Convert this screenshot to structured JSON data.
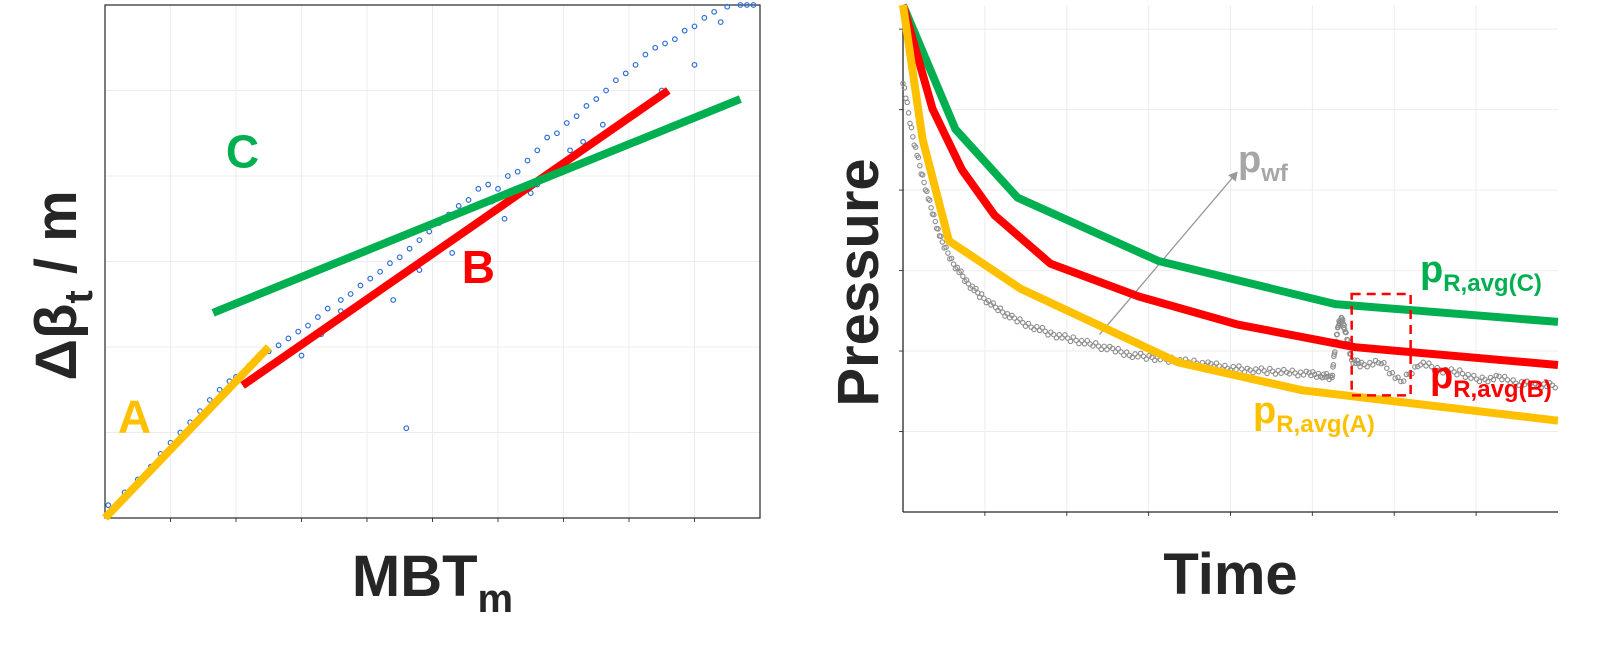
{
  "chart_data": [
    {
      "type": "scatter",
      "title": "",
      "xlabel": {
        "main": "MBT",
        "sub": "m"
      },
      "ylabel": {
        "pre": "Δβ",
        "sub": "t",
        "post": " / m"
      },
      "xlim": [
        0,
        10
      ],
      "ylim": [
        0,
        6
      ],
      "grid": true,
      "colors": {
        "points": "#2f6fd6",
        "A": "#ffc000",
        "B": "#ff0000",
        "C": "#00b050"
      },
      "trend_lines": [
        {
          "name": "A",
          "x": [
            0,
            2.5
          ],
          "y": [
            0,
            2.0
          ]
        },
        {
          "name": "B",
          "x": [
            2.1,
            8.6
          ],
          "y": [
            1.55,
            5.0
          ]
        },
        {
          "name": "C",
          "x": [
            1.65,
            9.7
          ],
          "y": [
            2.4,
            4.9
          ]
        }
      ],
      "segment_labels": [
        {
          "text": "A",
          "x": 0.45,
          "y": 1.0
        },
        {
          "text": "B",
          "x": 5.7,
          "y": 2.75
        },
        {
          "text": "C",
          "x": 2.1,
          "y": 4.1
        }
      ],
      "scatter_points": {
        "x": [
          0.05,
          0.3,
          0.5,
          0.7,
          0.85,
          1.0,
          1.15,
          1.3,
          1.45,
          1.6,
          1.75,
          1.9,
          2.0,
          2.2,
          2.35,
          2.5,
          2.65,
          2.8,
          2.95,
          3.1,
          3.25,
          3.4,
          3.6,
          3.75,
          3.9,
          4.05,
          4.2,
          4.35,
          4.5,
          4.65,
          4.8,
          4.95,
          5.1,
          5.25,
          5.4,
          5.55,
          5.7,
          5.85,
          6.0,
          6.15,
          6.3,
          6.45,
          6.6,
          6.75,
          6.9,
          7.05,
          7.2,
          7.35,
          7.5,
          7.65,
          7.8,
          7.95,
          8.1,
          8.25,
          8.4,
          8.55,
          8.7,
          8.85,
          9.0,
          9.15,
          9.3,
          9.5,
          9.7,
          9.9,
          3.0,
          3.3,
          3.6,
          4.4,
          4.8,
          5.3,
          5.9,
          6.1,
          6.6,
          7.1,
          7.4,
          7.6,
          8.0,
          8.5,
          9.0,
          9.4,
          9.8,
          4.6,
          5.8,
          6.5,
          7.3
        ],
        "y": [
          0.15,
          0.3,
          0.45,
          0.6,
          0.75,
          0.88,
          1.0,
          1.12,
          1.25,
          1.38,
          1.5,
          1.6,
          1.65,
          1.78,
          1.88,
          1.95,
          2.02,
          2.1,
          2.18,
          2.25,
          2.35,
          2.45,
          2.55,
          2.62,
          2.72,
          2.8,
          2.88,
          2.98,
          3.05,
          3.15,
          3.25,
          3.35,
          3.45,
          3.55,
          3.65,
          3.72,
          3.85,
          3.9,
          3.85,
          4.0,
          4.05,
          4.18,
          4.3,
          4.45,
          4.5,
          4.62,
          4.7,
          4.82,
          4.9,
          5.0,
          5.12,
          5.2,
          5.3,
          5.42,
          5.5,
          5.55,
          5.6,
          5.7,
          5.75,
          5.85,
          5.92,
          5.98,
          6.0,
          6.0,
          1.9,
          2.15,
          2.42,
          2.55,
          2.9,
          3.1,
          3.7,
          3.5,
          3.9,
          4.3,
          4.2,
          4.6,
          4.7,
          5.0,
          5.3,
          5.8,
          6.0,
          1.05,
          3.5,
          3.8,
          4.4
        ]
      }
    },
    {
      "type": "line",
      "title": "",
      "xlabel": "Time",
      "ylabel": "Pressure",
      "xlim": [
        0,
        10
      ],
      "ylim": [
        0,
        10
      ],
      "grid": true,
      "colors": {
        "A": "#ffc000",
        "B": "#ff0000",
        "C": "#00b050",
        "pwf": "#8c8c8c",
        "box": "#ff0000"
      },
      "series": [
        {
          "key": "C",
          "label_main": "p",
          "label_sub": "R,avg(C)",
          "x": [
            0,
            0.8,
            1.75,
            3.9,
            6.6,
            10
          ],
          "y": [
            10,
            7.55,
            6.2,
            4.95,
            4.1,
            3.75
          ]
        },
        {
          "key": "B",
          "label_main": "p",
          "label_sub": "R,avg(B)",
          "x": [
            0,
            0.45,
            0.9,
            1.4,
            2.25,
            3.6,
            5.1,
            6.9,
            10
          ],
          "y": [
            10,
            7.95,
            6.75,
            5.85,
            4.9,
            4.25,
            3.7,
            3.25,
            2.9
          ]
        },
        {
          "key": "A",
          "label_main": "p",
          "label_sub": "R,avg(A)",
          "x": [
            0,
            0.3,
            0.7,
            1.8,
            4.2,
            6.1,
            10
          ],
          "y": [
            10,
            7.35,
            5.35,
            4.4,
            2.95,
            2.4,
            1.8
          ]
        }
      ],
      "pwf": {
        "label_main": "p",
        "label_sub": "wf",
        "x": [
          0,
          0.15,
          0.3,
          0.45,
          0.6,
          0.8,
          1.0,
          1.2,
          1.45,
          1.7,
          2.0,
          2.3,
          2.6,
          2.9,
          3.2,
          3.5,
          3.8,
          4.1,
          4.4,
          4.7,
          5.0,
          5.3,
          5.6,
          5.9,
          6.2,
          6.4,
          6.55,
          6.6,
          6.65,
          6.7,
          6.75,
          6.85,
          7.0,
          7.3,
          7.6,
          7.9,
          8.2,
          8.5,
          8.8,
          9.1,
          9.4,
          9.7,
          10
        ],
        "y": [
          8.5,
          7.4,
          6.6,
          5.9,
          5.3,
          4.85,
          4.5,
          4.25,
          4.0,
          3.8,
          3.65,
          3.5,
          3.4,
          3.3,
          3.2,
          3.1,
          3.05,
          3.0,
          2.95,
          2.9,
          2.85,
          2.8,
          2.78,
          2.75,
          2.72,
          2.7,
          2.65,
          3.3,
          3.7,
          3.8,
          3.6,
          3.0,
          2.9,
          2.95,
          2.55,
          2.95,
          2.8,
          2.75,
          2.6,
          2.65,
          2.55,
          2.5,
          2.5
        ]
      },
      "pwf_arrow": {
        "from": [
          3.0,
          3.5
        ],
        "to": [
          5.1,
          6.7
        ]
      },
      "highlight_box": {
        "x": [
          6.85,
          7.75
        ],
        "y": [
          2.3,
          4.3
        ]
      }
    }
  ]
}
